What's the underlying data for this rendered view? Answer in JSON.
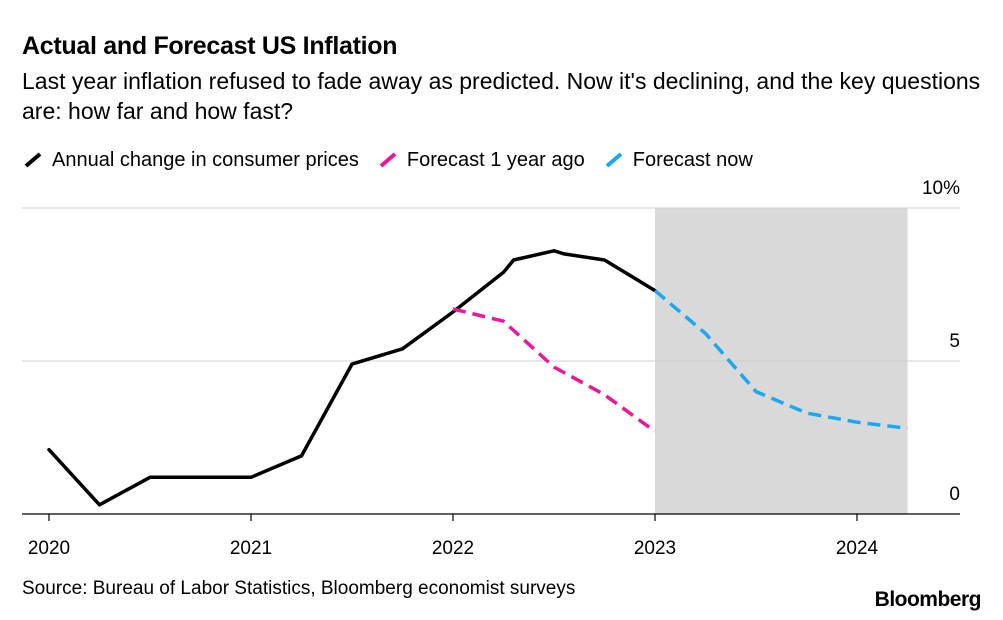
{
  "title": "Actual and Forecast US Inflation",
  "subtitle": "Last year inflation refused to fade away as predicted. Now it's declining, and the key questions are: how far and how fast?",
  "source": "Source: Bureau of Labor Statistics, Bloomberg economist surveys",
  "brand": "Bloomberg",
  "legend": [
    {
      "label": "Annual change in consumer prices",
      "color": "#000000",
      "style": "solid"
    },
    {
      "label": "Forecast 1 year ago",
      "color": "#e8189a",
      "style": "dashed"
    },
    {
      "label": "Forecast now",
      "color": "#1aa8f0",
      "style": "dashed"
    }
  ],
  "chart_data": {
    "type": "line",
    "x_tick_labels": [
      "2020",
      "2021",
      "2022",
      "2023",
      "2024"
    ],
    "y_tick_labels": [
      "10%",
      "5",
      "0"
    ],
    "y_ticks": [
      10,
      5,
      0
    ],
    "xlim": [
      2020,
      2024.45
    ],
    "ylim": [
      0,
      10
    ],
    "grid": true,
    "legend_position": "top",
    "shaded_region": {
      "x_start": 2023,
      "x_end": 2024.25,
      "color": "#d9d9d9"
    },
    "series": [
      {
        "name": "Annual change in consumer prices",
        "color": "#000000",
        "dashed": false,
        "points": [
          [
            2020,
            2.1
          ],
          [
            2020.25,
            0.3
          ],
          [
            2020.5,
            1.2
          ],
          [
            2020.75,
            1.2
          ],
          [
            2021,
            1.2
          ],
          [
            2021.25,
            1.9
          ],
          [
            2021.5,
            4.9
          ],
          [
            2021.75,
            5.4
          ],
          [
            2022,
            6.6
          ],
          [
            2022.25,
            7.9
          ],
          [
            2022.3,
            8.3
          ],
          [
            2022.5,
            8.6
          ],
          [
            2022.55,
            8.5
          ],
          [
            2022.75,
            8.3
          ],
          [
            2023,
            7.3
          ]
        ]
      },
      {
        "name": "Forecast 1 year ago",
        "color": "#e8189a",
        "dashed": true,
        "points": [
          [
            2022,
            6.7
          ],
          [
            2022.25,
            6.3
          ],
          [
            2022.5,
            4.8
          ],
          [
            2022.75,
            3.9
          ],
          [
            2023,
            2.7
          ]
        ]
      },
      {
        "name": "Forecast now",
        "color": "#1aa8f0",
        "dashed": true,
        "points": [
          [
            2023,
            7.3
          ],
          [
            2023.25,
            5.9
          ],
          [
            2023.5,
            4.0
          ],
          [
            2023.75,
            3.3
          ],
          [
            2024,
            3.0
          ],
          [
            2024.25,
            2.8
          ]
        ]
      }
    ]
  }
}
